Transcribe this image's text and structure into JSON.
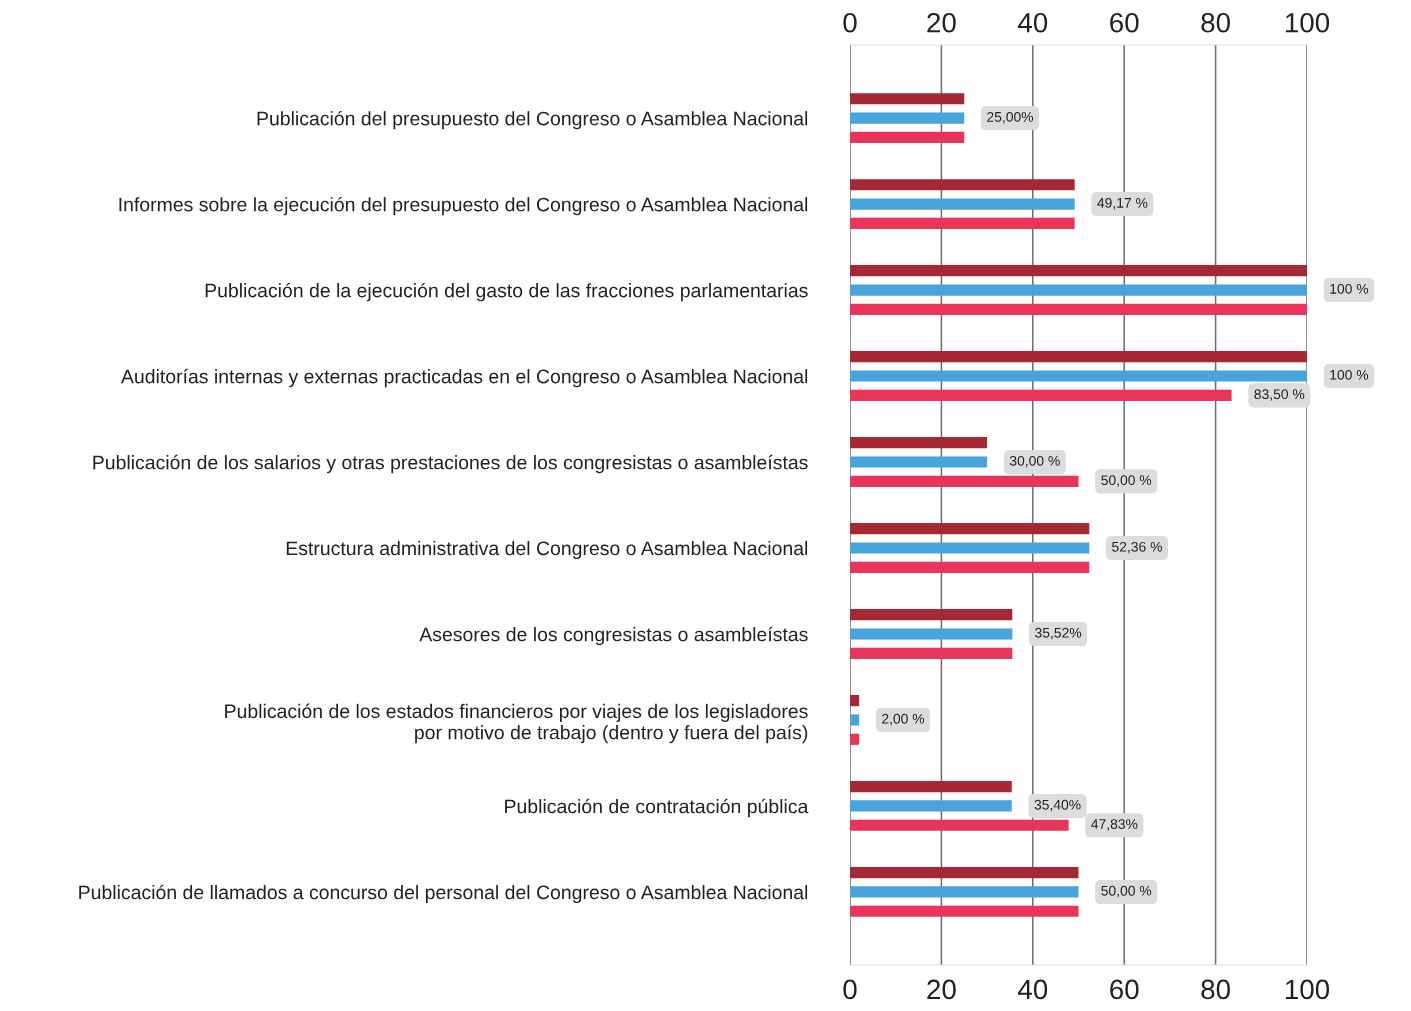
{
  "chart_data": {
    "type": "bar",
    "orientation": "horizontal",
    "categories": [
      "Publicación del presupuesto del Congreso o Asamblea Nacional",
      "Informes sobre la ejecución del presupuesto del Congreso o Asamblea Nacional",
      "Publicación de la ejecución del gasto de las fracciones parlamentarias",
      "Auditorías internas y externas practicadas en el Congreso o Asamblea Nacional",
      "Publicación de los salarios y otras prestaciones de los congresistas o asambleístas",
      "Estructura administrativa del Congreso o Asamblea Nacional",
      "Asesores de los congresistas o asambleístas",
      "Publicación de los estados financieros por viajes de los legisladores\npor motivo de trabajo (dentro y fuera del país)",
      "Publicación de contratación pública",
      "Publicación de llamados a concurso del personal del Congreso o Asamblea Nacional"
    ],
    "series": [
      {
        "color": "#a52834",
        "values": [
          25,
          49.17,
          100,
          100,
          30,
          52.36,
          35.52,
          2,
          35.4,
          50
        ]
      },
      {
        "color": "#48a4dc",
        "values": [
          25,
          49.17,
          100,
          100,
          30,
          52.36,
          35.52,
          2,
          35.4,
          50
        ],
        "value_labels": [
          "25,00%",
          "49,17 %",
          "100 %",
          "100 %",
          "30,00 %",
          "52,36 %",
          "35,52%",
          "2,00 %",
          "35,40%",
          "50,00 %"
        ]
      },
      {
        "color": "#ea3459",
        "values": [
          25,
          49.17,
          100,
          83.5,
          50,
          52.36,
          35.52,
          2,
          47.83,
          50
        ],
        "value_labels": [
          null,
          null,
          null,
          "83,50 %",
          "50,00 %",
          null,
          null,
          null,
          "47,83%",
          null
        ]
      }
    ],
    "xlim": [
      0,
      100
    ],
    "xticks": [
      0,
      20,
      40,
      60,
      80,
      100
    ],
    "x2lim": [
      0,
      100
    ],
    "x2ticks": [
      0,
      20,
      40,
      60,
      80,
      100
    ],
    "grid": "x"
  }
}
